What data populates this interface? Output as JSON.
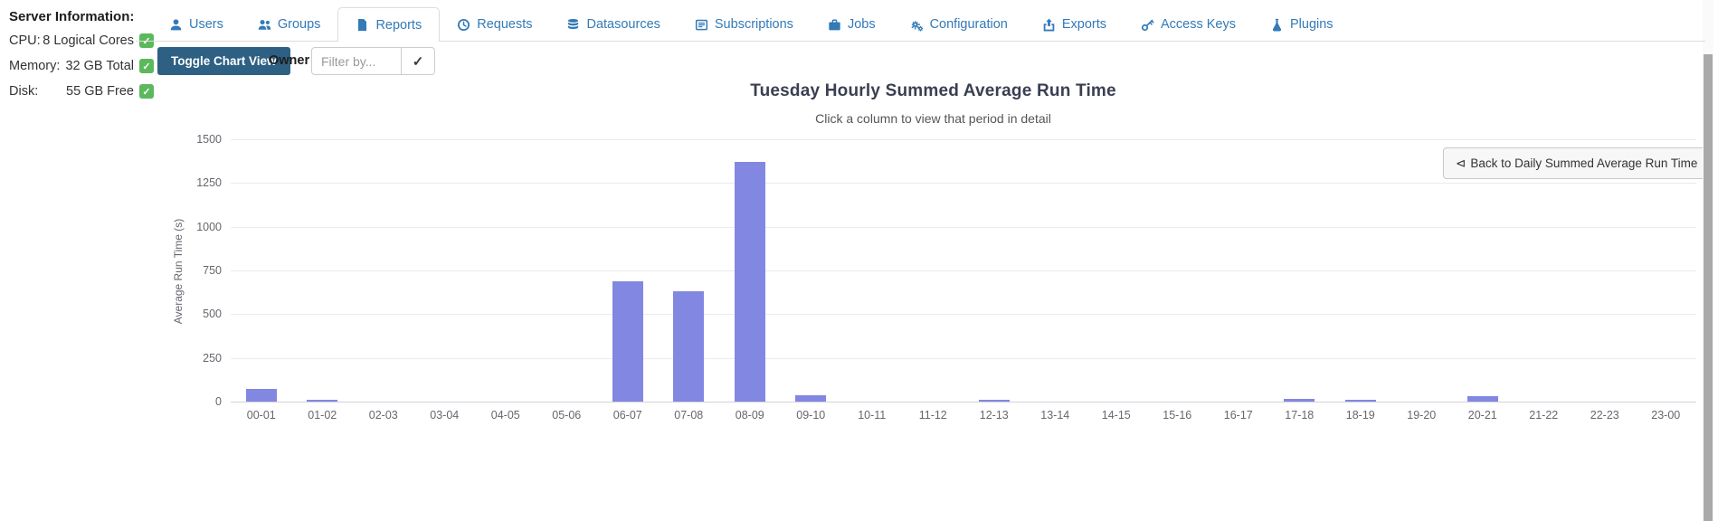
{
  "sidebar": {
    "title": "Server Information:",
    "check_glyph": "✓",
    "items": [
      {
        "label": "CPU:",
        "value": "8 Logical Cores",
        "status_icon": "check-square-icon",
        "status_color": "#5cb85c"
      },
      {
        "label": "Memory:",
        "value": "32 GB Total",
        "status_icon": "check-square-icon",
        "status_color": "#5cb85c"
      },
      {
        "label": "Disk:",
        "value": "55 GB Free",
        "status_icon": "check-square-icon",
        "status_color": "#5cb85c"
      }
    ]
  },
  "tabs": [
    {
      "label": "Users",
      "icon": "user-icon",
      "active": false
    },
    {
      "label": "Groups",
      "icon": "users-icon",
      "active": false
    },
    {
      "label": "Reports",
      "icon": "file-icon",
      "active": true
    },
    {
      "label": "Requests",
      "icon": "history-icon",
      "active": false
    },
    {
      "label": "Datasources",
      "icon": "database-icon",
      "active": false
    },
    {
      "label": "Subscriptions",
      "icon": "subscriptions-icon",
      "active": false
    },
    {
      "label": "Jobs",
      "icon": "briefcase-icon",
      "active": false
    },
    {
      "label": "Configuration",
      "icon": "gears-icon",
      "active": false
    },
    {
      "label": "Exports",
      "icon": "export-icon",
      "active": false
    },
    {
      "label": "Access Keys",
      "icon": "key-icon",
      "active": false
    },
    {
      "label": "Plugins",
      "icon": "flask-icon",
      "active": false
    }
  ],
  "toolbar": {
    "toggle_button_label": "Toggle Chart View",
    "owner_label": "Owner",
    "filter_placeholder": "Filter by...",
    "apply_icon": "check-icon",
    "apply_glyph": "✓"
  },
  "back_button": {
    "icon": "back-arrow-icon",
    "icon_glyph": "⊲",
    "label": "Back to Daily Summed Average Run Time"
  },
  "colors": {
    "accent_blue": "#337ab7",
    "button_dark_blue": "#2e6084",
    "bar_purple": "#8287e2",
    "success_green": "#5cb85c"
  },
  "chart_data": {
    "type": "bar",
    "title": "Tuesday Hourly Summed Average Run Time",
    "subtitle": "Click a column to view that period in detail",
    "xlabel": "",
    "ylabel": "Average Run Time (s)",
    "ylim": [
      0,
      1500
    ],
    "yticks": [
      0,
      250,
      500,
      750,
      1000,
      1250,
      1500
    ],
    "grid": true,
    "legend": "none",
    "bar_color": "#8287e2",
    "categories": [
      "00-01",
      "01-02",
      "02-03",
      "03-04",
      "04-05",
      "05-06",
      "06-07",
      "07-08",
      "08-09",
      "09-10",
      "10-11",
      "11-12",
      "12-13",
      "13-14",
      "14-15",
      "15-16",
      "16-17",
      "17-18",
      "18-19",
      "19-20",
      "20-21",
      "21-22",
      "22-23",
      "23-00"
    ],
    "values": [
      70,
      10,
      0,
      0,
      0,
      0,
      690,
      630,
      1370,
      35,
      0,
      0,
      8,
      0,
      0,
      0,
      0,
      15,
      10,
      0,
      30,
      0,
      0,
      0
    ]
  }
}
